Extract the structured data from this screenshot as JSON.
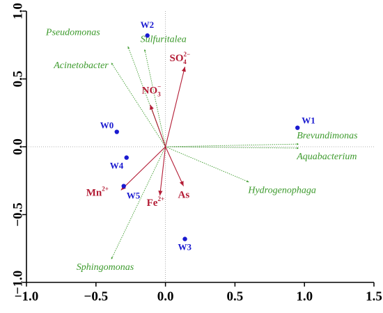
{
  "chart_data": {
    "type": "scatter",
    "subtype": "biplot",
    "xlim": [
      -1.0,
      1.5
    ],
    "ylim": [
      -1.0,
      1.0
    ],
    "x_ticks": [
      "−1.0",
      "−0.5",
      "0.0",
      "0.5",
      "1.0",
      "1.5"
    ],
    "y_ticks": [
      "1.0",
      "0.5",
      "0.0",
      "−0.5",
      "−1.0"
    ],
    "x_tick_values": [
      -1.0,
      -0.5,
      0.0,
      0.5,
      1.0,
      1.5
    ],
    "y_tick_values": [
      1.0,
      0.5,
      0.0,
      -0.5,
      -1.0
    ],
    "grid": false,
    "colors": {
      "sites": "#1a1ad0",
      "genera": "#3c9a2c",
      "env": "#b31c35",
      "axis": "#000000"
    },
    "sites": [
      {
        "label": "W0",
        "x": -0.35,
        "y": 0.11
      },
      {
        "label": "W1",
        "x": 0.95,
        "y": 0.14
      },
      {
        "label": "W2",
        "x": -0.13,
        "y": 0.82
      },
      {
        "label": "W3",
        "x": 0.14,
        "y": -0.68
      },
      {
        "label": "W4",
        "x": -0.28,
        "y": -0.08
      },
      {
        "label": "W5",
        "x": -0.3,
        "y": -0.29
      }
    ],
    "genera": [
      {
        "label": "Pseudomonas",
        "x": -0.27,
        "y": 0.74
      },
      {
        "label": "Sulfuritalea",
        "x": -0.15,
        "y": 0.72
      },
      {
        "label": "Acinetobacter",
        "x": -0.39,
        "y": 0.62
      },
      {
        "label": "Brevundimonas",
        "x": 0.96,
        "y": 0.02
      },
      {
        "label": "Aquabacterium",
        "x": 0.96,
        "y": -0.01
      },
      {
        "label": "Hydrogenophaga",
        "x": 0.6,
        "y": -0.26
      },
      {
        "label": "Sphingomonas",
        "x": -0.39,
        "y": -0.83
      }
    ],
    "env": [
      {
        "label": "SO",
        "sub": "4",
        "sup": "2−",
        "x": 0.14,
        "y": 0.59
      },
      {
        "label": "NO",
        "sub": "3",
        "sup": "−",
        "x": -0.11,
        "y": 0.31
      },
      {
        "label": "Mn",
        "sub": "",
        "sup": "2+",
        "x": -0.32,
        "y": -0.32
      },
      {
        "label": "Fe",
        "sub": "",
        "sup": "2+",
        "x": -0.04,
        "y": -0.36
      },
      {
        "label": "As",
        "sub": "",
        "sup": "",
        "x": 0.13,
        "y": -0.29
      }
    ]
  }
}
